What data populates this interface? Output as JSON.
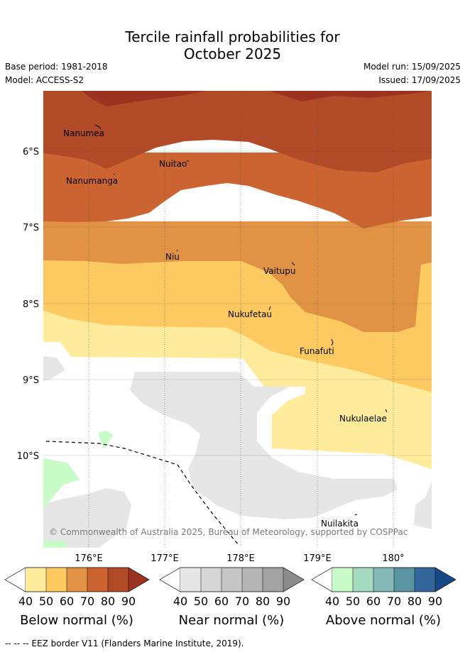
{
  "title_line1": "Tercile rainfall probabilities for",
  "title_line2": "October 2025",
  "base_period": "Base period: 1981-2018",
  "model": "Model: ACCESS-S2",
  "model_run": "Model run: 15/09/2025",
  "issued": "Issued: 17/09/2025",
  "lat_labels": [
    "6°S",
    "7°S",
    "8°S",
    "9°S",
    "10°S"
  ],
  "lon_labels": [
    "176°E",
    "177°E",
    "178°E",
    "179°E",
    "180°"
  ],
  "places": [
    "Nanumea",
    "Nuitao",
    "Nanumanga",
    "Niu",
    "Vaitupu",
    "Nukufetau",
    "Funafuti",
    "Nukulaelae",
    "Nuilakita"
  ],
  "copyright": "© Commonwealth of Australia 2025, Bureau of Meteorology, supported by COSPPac",
  "colorbars": [
    {
      "label": "Below normal (%)",
      "ticks": [
        "40",
        "50",
        "60",
        "70",
        "80",
        "90"
      ],
      "colors": [
        "#ffeb9c",
        "#fdca62",
        "#e09344",
        "#cc6431",
        "#b04a27",
        "#9c3321"
      ]
    },
    {
      "label": "Near normal (%)",
      "ticks": [
        "40",
        "50",
        "60",
        "70",
        "80",
        "90"
      ],
      "colors": [
        "#e6e6e6",
        "#d6d6d6",
        "#c6c6c6",
        "#b5b5b5",
        "#a3a3a3",
        "#8c8c8c"
      ]
    },
    {
      "label": "Above normal (%)",
      "ticks": [
        "40",
        "50",
        "60",
        "70",
        "80",
        "90"
      ],
      "colors": [
        "#c9fbc9",
        "#a5d9c0",
        "#84b9b6",
        "#5b94a1",
        "#33679c",
        "#164a84"
      ]
    }
  ],
  "eez_note": "--  --  -- EEZ border V11 (Flanders Marine Institute, 2019)."
}
